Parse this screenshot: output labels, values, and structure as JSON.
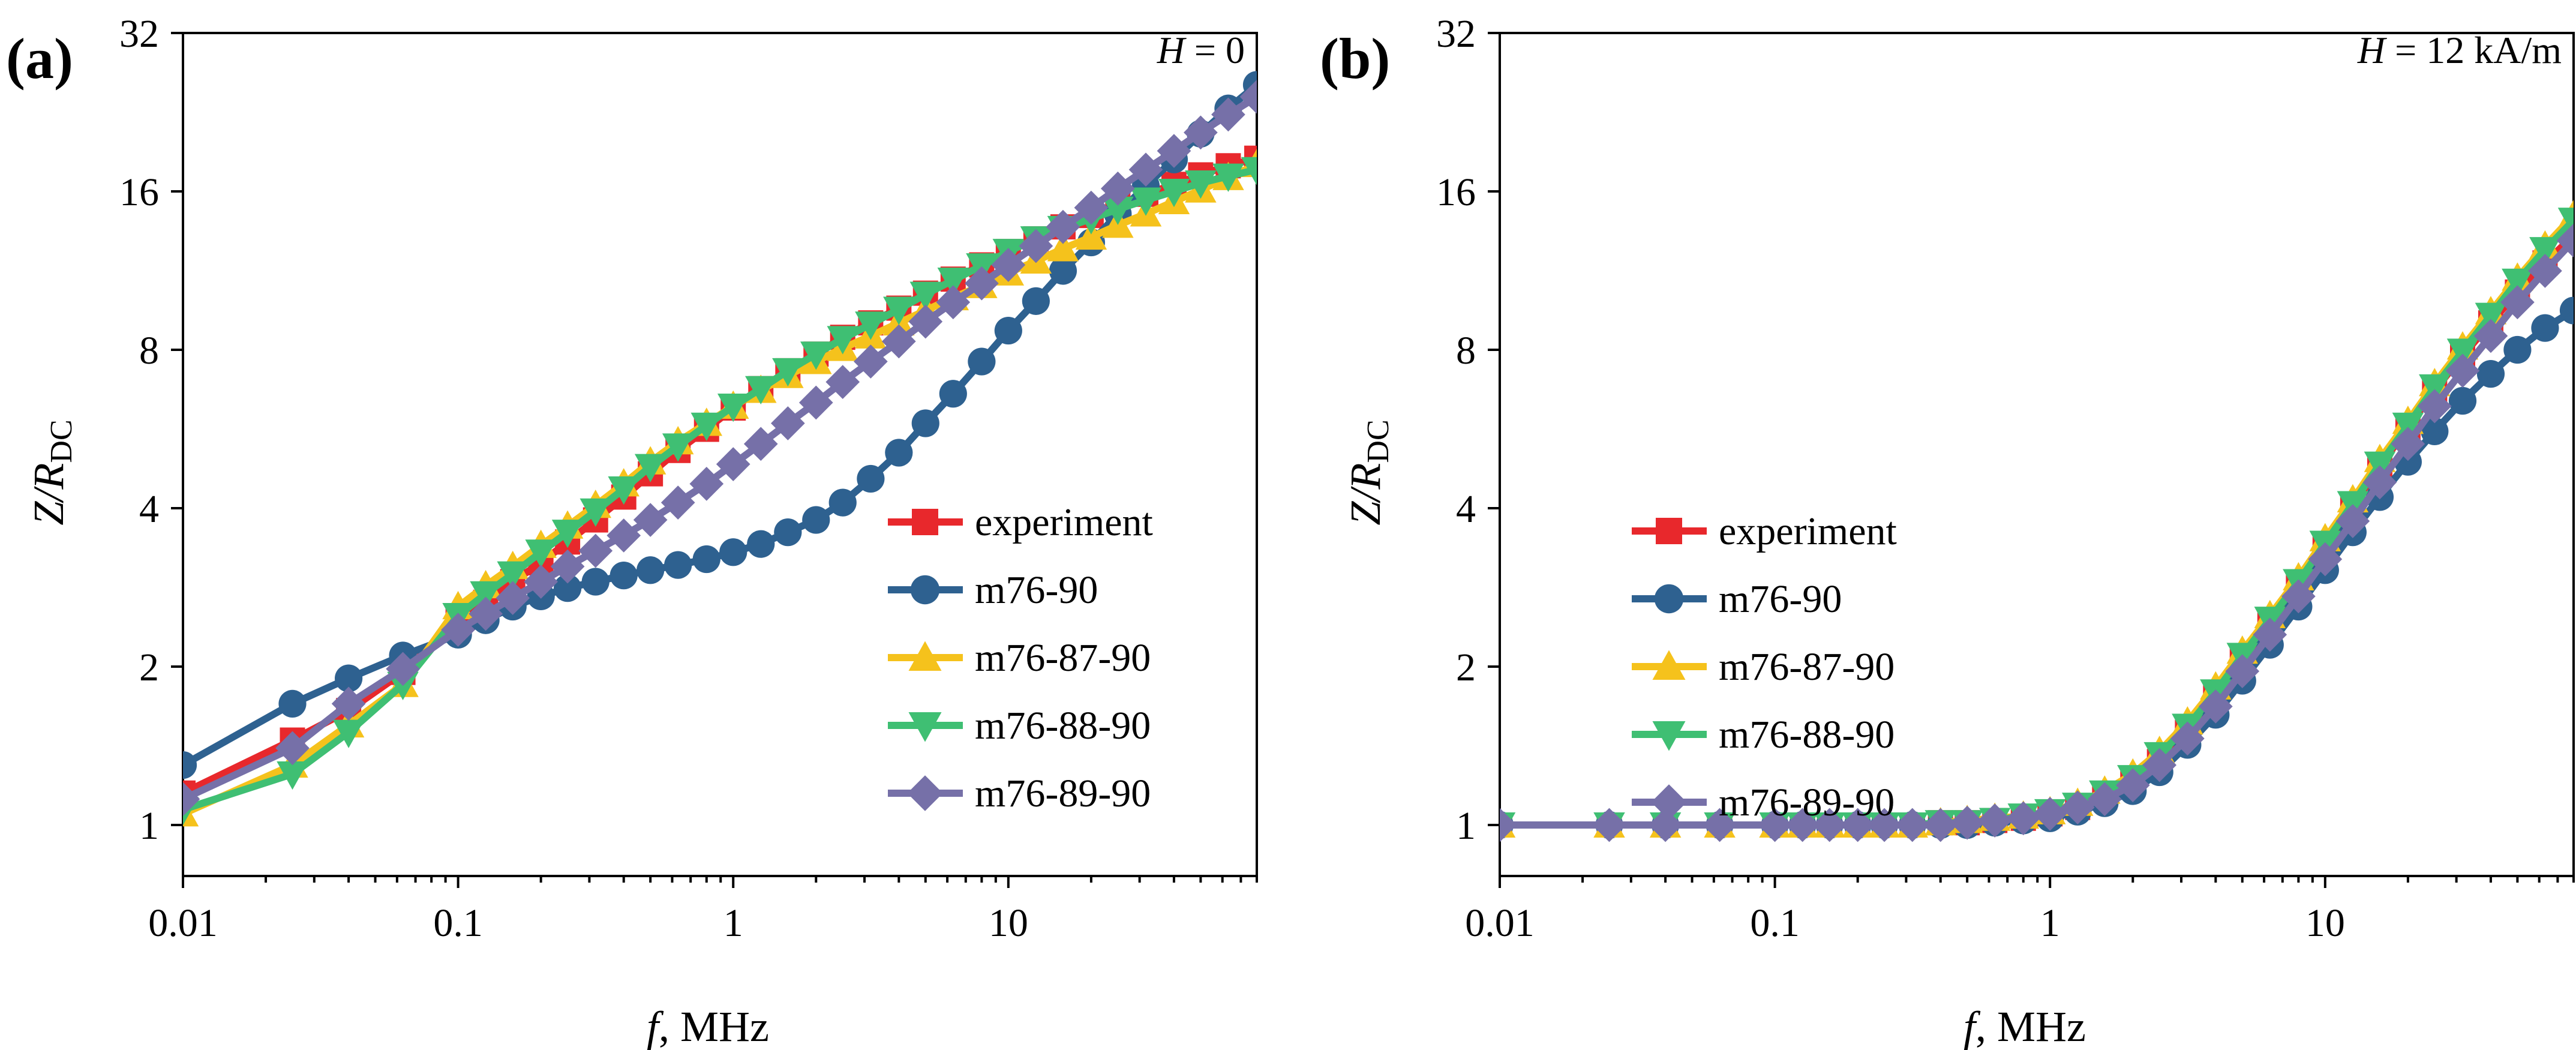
{
  "colors": {
    "experiment": "#e8282c",
    "m76-90": "#2e6190",
    "m76-87-90": "#f5c21c",
    "m76-88-90": "#3fbf73",
    "m76-89-90": "#7670a8"
  },
  "chart_data": [
    {
      "type": "line",
      "panel_label": "(a)",
      "annotation": "H = 0",
      "annotation_var": "H",
      "annotation_rest": " = 0",
      "xlabel_var": "f",
      "xlabel_rest": ", MHz",
      "ylabel_var": "Z/R",
      "ylabel_sub": "DC",
      "xscale": "log",
      "yscale": "log2",
      "xlim": [
        0.01,
        80
      ],
      "ylim": [
        0.8,
        32
      ],
      "xticks": [
        0.01,
        0.1,
        1,
        10
      ],
      "xtick_labels": [
        "0.01",
        "0.1",
        "1",
        "10"
      ],
      "yticks": [
        1,
        2,
        4,
        8,
        16,
        32
      ],
      "ytick_labels": [
        "1",
        "2",
        "4",
        "8",
        "16",
        "32"
      ],
      "legend_position": "lower-right",
      "legend": [
        "experiment",
        "m76-90",
        "m76-87-90",
        "m76-88-90",
        "m76-89-90"
      ],
      "series": [
        {
          "name": "experiment",
          "marker": "square",
          "x": [
            0.01,
            0.025,
            0.04,
            0.063,
            0.1,
            0.126,
            0.158,
            0.2,
            0.25,
            0.316,
            0.4,
            0.5,
            0.63,
            0.8,
            1,
            1.26,
            1.58,
            2,
            2.5,
            3.16,
            4,
            5,
            6.3,
            8,
            10,
            12.6,
            15.8,
            20,
            25,
            31.6,
            40,
            50,
            63,
            80
          ],
          "y": [
            1.15,
            1.45,
            1.65,
            1.95,
            2.45,
            2.65,
            2.9,
            3.15,
            3.45,
            3.8,
            4.2,
            4.65,
            5.15,
            5.65,
            6.2,
            6.75,
            7.3,
            7.85,
            8.45,
            9.0,
            9.6,
            10.25,
            10.9,
            11.6,
            12.3,
            13.0,
            13.7,
            14.4,
            15.1,
            15.8,
            16.5,
            17.2,
            17.9,
            18.5
          ]
        },
        {
          "name": "m76-90",
          "marker": "circle",
          "x": [
            0.01,
            0.025,
            0.04,
            0.063,
            0.1,
            0.126,
            0.158,
            0.2,
            0.25,
            0.316,
            0.4,
            0.5,
            0.63,
            0.8,
            1,
            1.26,
            1.58,
            2,
            2.5,
            3.16,
            4,
            5,
            6.3,
            8,
            10,
            12.6,
            15.8,
            20,
            25,
            31.6,
            40,
            50,
            63,
            80
          ],
          "y": [
            1.3,
            1.7,
            1.9,
            2.1,
            2.3,
            2.45,
            2.6,
            2.72,
            2.82,
            2.9,
            2.98,
            3.05,
            3.12,
            3.2,
            3.3,
            3.42,
            3.6,
            3.8,
            4.1,
            4.55,
            5.1,
            5.8,
            6.6,
            7.6,
            8.7,
            9.9,
            11.3,
            12.8,
            14.5,
            16.4,
            18.4,
            20.6,
            23.0,
            25.5
          ]
        },
        {
          "name": "m76-87-90",
          "marker": "triangle-up",
          "x": [
            0.01,
            0.025,
            0.04,
            0.063,
            0.1,
            0.126,
            0.158,
            0.2,
            0.25,
            0.316,
            0.4,
            0.5,
            0.63,
            0.8,
            1,
            1.26,
            1.58,
            2,
            2.5,
            3.16,
            4,
            5,
            6.3,
            8,
            10,
            12.6,
            15.8,
            20,
            25,
            31.6,
            40,
            50,
            63,
            80
          ],
          "y": [
            1.05,
            1.3,
            1.55,
            1.85,
            2.6,
            2.85,
            3.1,
            3.4,
            3.7,
            4.05,
            4.45,
            4.9,
            5.35,
            5.8,
            6.25,
            6.7,
            7.15,
            7.6,
            8.05,
            8.5,
            9.0,
            9.5,
            10.05,
            10.6,
            11.2,
            11.8,
            12.45,
            13.1,
            13.8,
            14.5,
            15.3,
            16.1,
            17.0,
            18.0
          ]
        },
        {
          "name": "m76-88-90",
          "marker": "triangle-down",
          "x": [
            0.01,
            0.025,
            0.04,
            0.063,
            0.1,
            0.126,
            0.158,
            0.2,
            0.25,
            0.316,
            0.4,
            0.5,
            0.63,
            0.8,
            1,
            1.26,
            1.58,
            2,
            2.5,
            3.16,
            4,
            5,
            6.3,
            8,
            10,
            12.6,
            15.8,
            20,
            25,
            31.6,
            40,
            50,
            63,
            80
          ],
          "y": [
            1.07,
            1.25,
            1.5,
            1.85,
            2.5,
            2.75,
            3.0,
            3.3,
            3.6,
            3.95,
            4.35,
            4.8,
            5.25,
            5.75,
            6.25,
            6.75,
            7.3,
            7.85,
            8.4,
            8.95,
            9.55,
            10.2,
            10.85,
            11.55,
            12.3,
            13.0,
            13.6,
            14.2,
            14.8,
            15.4,
            16.0,
            16.6,
            17.1,
            17.6
          ]
        },
        {
          "name": "m76-89-90",
          "marker": "diamond",
          "x": [
            0.01,
            0.025,
            0.04,
            0.063,
            0.1,
            0.126,
            0.158,
            0.2,
            0.25,
            0.316,
            0.4,
            0.5,
            0.63,
            0.8,
            1,
            1.26,
            1.58,
            2,
            2.5,
            3.16,
            4,
            5,
            6.3,
            8,
            10,
            12.6,
            15.8,
            20,
            25,
            31.6,
            40,
            50,
            63,
            80
          ],
          "y": [
            1.12,
            1.4,
            1.7,
            1.98,
            2.35,
            2.52,
            2.7,
            2.9,
            3.1,
            3.32,
            3.55,
            3.8,
            4.1,
            4.45,
            4.85,
            5.3,
            5.8,
            6.35,
            6.95,
            7.6,
            8.3,
            9.05,
            9.85,
            10.7,
            11.6,
            12.6,
            13.7,
            14.9,
            16.2,
            17.6,
            19.1,
            20.7,
            22.4,
            24.2
          ]
        }
      ]
    },
    {
      "type": "line",
      "panel_label": "(b)",
      "annotation": "H = 12 kA/m",
      "annotation_var": "H",
      "annotation_rest": " = 12 kA/m",
      "xlabel_var": "f",
      "xlabel_rest": ", MHz",
      "ylabel_var": "Z/R",
      "ylabel_sub": "DC",
      "xscale": "log",
      "yscale": "log2",
      "xlim": [
        0.01,
        80
      ],
      "ylim": [
        0.8,
        32
      ],
      "xticks": [
        0.01,
        0.1,
        1,
        10
      ],
      "xtick_labels": [
        "0.01",
        "0.1",
        "1",
        "10"
      ],
      "yticks": [
        1,
        2,
        4,
        8,
        16,
        32
      ],
      "ytick_labels": [
        "1",
        "2",
        "4",
        "8",
        "16",
        "32"
      ],
      "legend_position": "lower-left",
      "legend": [
        "experiment",
        "m76-90",
        "m76-87-90",
        "m76-88-90",
        "m76-89-90"
      ],
      "series": [
        {
          "name": "experiment",
          "marker": "square",
          "x": [
            0.01,
            0.025,
            0.04,
            0.063,
            0.1,
            0.126,
            0.158,
            0.2,
            0.25,
            0.316,
            0.4,
            0.5,
            0.63,
            0.8,
            1,
            1.26,
            1.58,
            2,
            2.5,
            3.16,
            4,
            5,
            6.3,
            8,
            10,
            12.6,
            15.8,
            20,
            25,
            31.6,
            40,
            50,
            63,
            80
          ],
          "y": [
            1,
            1,
            1,
            1,
            1,
            1,
            1,
            1,
            1,
            1,
            1.01,
            1.01,
            1.02,
            1.03,
            1.05,
            1.08,
            1.13,
            1.2,
            1.32,
            1.5,
            1.75,
            2.05,
            2.4,
            2.85,
            3.4,
            4.05,
            4.8,
            5.7,
            6.7,
            7.8,
            9.0,
            10.3,
            11.7,
            13.2
          ]
        },
        {
          "name": "m76-90",
          "marker": "circle",
          "x": [
            0.01,
            0.025,
            0.04,
            0.063,
            0.1,
            0.126,
            0.158,
            0.2,
            0.25,
            0.316,
            0.4,
            0.5,
            0.63,
            0.8,
            1,
            1.26,
            1.58,
            2,
            2.5,
            3.16,
            4,
            5,
            6.3,
            8,
            10,
            12.6,
            15.8,
            20,
            25,
            31.6,
            40,
            50,
            63,
            80
          ],
          "y": [
            1,
            1,
            1,
            1,
            1,
            1,
            1,
            1,
            1,
            1,
            1,
            1,
            1.01,
            1.02,
            1.03,
            1.06,
            1.1,
            1.16,
            1.26,
            1.42,
            1.62,
            1.88,
            2.2,
            2.6,
            3.05,
            3.6,
            4.2,
            4.9,
            5.6,
            6.4,
            7.2,
            8.0,
            8.8,
            9.5
          ]
        },
        {
          "name": "m76-87-90",
          "marker": "triangle-up",
          "x": [
            0.01,
            0.025,
            0.04,
            0.063,
            0.1,
            0.126,
            0.158,
            0.2,
            0.25,
            0.316,
            0.4,
            0.5,
            0.63,
            0.8,
            1,
            1.26,
            1.58,
            2,
            2.5,
            3.16,
            4,
            5,
            6.3,
            8,
            10,
            12.6,
            15.8,
            20,
            25,
            31.6,
            40,
            50,
            63,
            80
          ],
          "y": [
            1,
            1,
            1,
            1,
            1,
            1,
            1,
            1,
            1,
            1,
            1.01,
            1.02,
            1.03,
            1.04,
            1.06,
            1.1,
            1.16,
            1.25,
            1.38,
            1.57,
            1.83,
            2.14,
            2.5,
            2.95,
            3.5,
            4.15,
            4.95,
            5.85,
            6.9,
            8.1,
            9.45,
            10.95,
            12.6,
            14.4
          ]
        },
        {
          "name": "m76-88-90",
          "marker": "triangle-down",
          "x": [
            0.01,
            0.025,
            0.04,
            0.063,
            0.1,
            0.126,
            0.158,
            0.2,
            0.25,
            0.316,
            0.4,
            0.5,
            0.63,
            0.8,
            1,
            1.26,
            1.58,
            2,
            2.5,
            3.16,
            4,
            5,
            6.3,
            8,
            10,
            12.6,
            15.8,
            20,
            25,
            31.6,
            40,
            50,
            63,
            80
          ],
          "y": [
            1,
            1,
            1,
            1,
            1,
            1,
            1,
            1,
            1,
            1,
            1.01,
            1.01,
            1.02,
            1.04,
            1.06,
            1.09,
            1.15,
            1.23,
            1.36,
            1.54,
            1.79,
            2.1,
            2.46,
            2.9,
            3.43,
            4.08,
            4.85,
            5.75,
            6.8,
            7.95,
            9.3,
            10.8,
            12.4,
            14.1
          ]
        },
        {
          "name": "m76-89-90",
          "marker": "diamond",
          "x": [
            0.01,
            0.025,
            0.04,
            0.063,
            0.1,
            0.126,
            0.158,
            0.2,
            0.25,
            0.316,
            0.4,
            0.5,
            0.63,
            0.8,
            1,
            1.26,
            1.58,
            2,
            2.5,
            3.16,
            4,
            5,
            6.3,
            8,
            10,
            12.6,
            15.8,
            20,
            25,
            31.6,
            40,
            50,
            63,
            80
          ],
          "y": [
            1,
            1,
            1,
            1,
            1,
            1,
            1,
            1,
            1,
            1,
            1,
            1.01,
            1.02,
            1.03,
            1.05,
            1.08,
            1.12,
            1.19,
            1.3,
            1.46,
            1.68,
            1.96,
            2.3,
            2.72,
            3.2,
            3.78,
            4.48,
            5.3,
            6.25,
            7.3,
            8.5,
            9.85,
            11.3,
            12.9
          ]
        }
      ]
    }
  ]
}
